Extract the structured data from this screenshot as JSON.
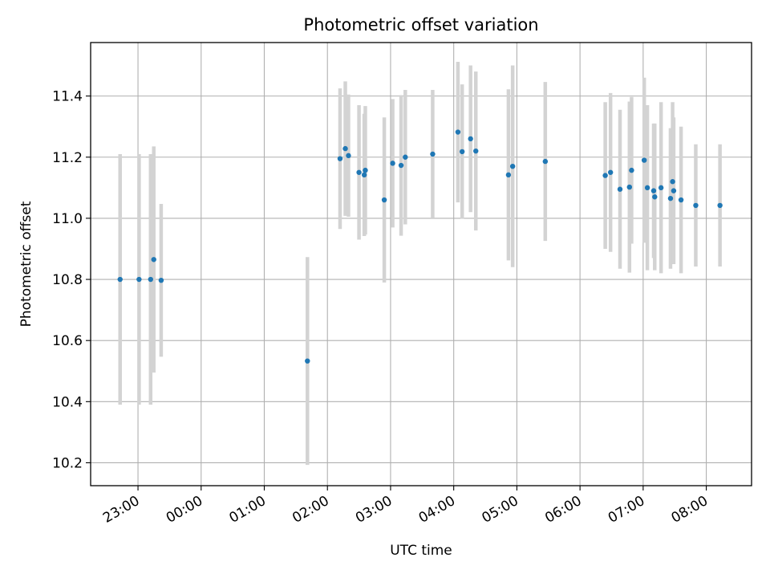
{
  "chart_data": {
    "type": "scatter",
    "title": "Photometric offset variation",
    "xlabel": "UTC time",
    "ylabel": "Photometric offset",
    "x_axis": "time",
    "xlim": [
      "22:15",
      "08:43"
    ],
    "ylim": [
      10.125,
      11.575
    ],
    "x_ticks": [
      "23:00",
      "00:00",
      "01:00",
      "02:00",
      "03:00",
      "04:00",
      "05:00",
      "06:00",
      "07:00",
      "08:00"
    ],
    "y_ticks": [
      10.2,
      10.4,
      10.6,
      10.8,
      11.0,
      11.2,
      11.4
    ],
    "grid": true,
    "colors": {
      "points": "#1f77b4",
      "errorbars": "#d3d3d3",
      "grid": "#b0b0b0"
    },
    "points": [
      {
        "x": "22:43",
        "y": 10.8,
        "err": 0.41
      },
      {
        "x": "23:01",
        "y": 10.8,
        "err": 0.41
      },
      {
        "x": "23:12",
        "y": 10.8,
        "err": 0.41
      },
      {
        "x": "23:15",
        "y": 10.865,
        "err": 0.37
      },
      {
        "x": "23:22",
        "y": 10.797,
        "err": 0.25
      },
      {
        "x": "01:41",
        "y": 10.533,
        "err": 0.34
      },
      {
        "x": "02:12",
        "y": 11.195,
        "err": 0.23
      },
      {
        "x": "02:17",
        "y": 11.228,
        "err": 0.22
      },
      {
        "x": "02:20",
        "y": 11.205,
        "err": 0.2
      },
      {
        "x": "02:30",
        "y": 11.15,
        "err": 0.22
      },
      {
        "x": "02:35",
        "y": 11.142,
        "err": 0.2
      },
      {
        "x": "02:36",
        "y": 11.157,
        "err": 0.21
      },
      {
        "x": "02:54",
        "y": 11.06,
        "err": 0.27
      },
      {
        "x": "03:02",
        "y": 11.18,
        "err": 0.21
      },
      {
        "x": "03:10",
        "y": 11.173,
        "err": 0.23
      },
      {
        "x": "03:14",
        "y": 11.2,
        "err": 0.22
      },
      {
        "x": "03:40",
        "y": 11.21,
        "err": 0.21
      },
      {
        "x": "04:04",
        "y": 11.282,
        "err": 0.23
      },
      {
        "x": "04:08",
        "y": 11.218,
        "err": 0.22
      },
      {
        "x": "04:16",
        "y": 11.26,
        "err": 0.24
      },
      {
        "x": "04:21",
        "y": 11.22,
        "err": 0.26
      },
      {
        "x": "04:52",
        "y": 11.142,
        "err": 0.28
      },
      {
        "x": "04:56",
        "y": 11.17,
        "err": 0.33
      },
      {
        "x": "05:27",
        "y": 11.186,
        "err": 0.26
      },
      {
        "x": "06:24",
        "y": 11.14,
        "err": 0.24
      },
      {
        "x": "06:29",
        "y": 11.15,
        "err": 0.26
      },
      {
        "x": "06:38",
        "y": 11.095,
        "err": 0.26
      },
      {
        "x": "06:47",
        "y": 11.102,
        "err": 0.28
      },
      {
        "x": "06:49",
        "y": 11.157,
        "err": 0.24
      },
      {
        "x": "07:01",
        "y": 11.19,
        "err": 0.27
      },
      {
        "x": "07:04",
        "y": 11.1,
        "err": 0.27
      },
      {
        "x": "07:10",
        "y": 11.09,
        "err": 0.22
      },
      {
        "x": "07:11",
        "y": 11.07,
        "err": 0.24
      },
      {
        "x": "07:17",
        "y": 11.1,
        "err": 0.28
      },
      {
        "x": "07:26",
        "y": 11.065,
        "err": 0.23
      },
      {
        "x": "07:28",
        "y": 11.12,
        "err": 0.26
      },
      {
        "x": "07:29",
        "y": 11.09,
        "err": 0.24
      },
      {
        "x": "07:36",
        "y": 11.06,
        "err": 0.24
      },
      {
        "x": "07:50",
        "y": 11.042,
        "err": 0.2
      },
      {
        "x": "08:13",
        "y": 11.042,
        "err": 0.2
      }
    ]
  }
}
